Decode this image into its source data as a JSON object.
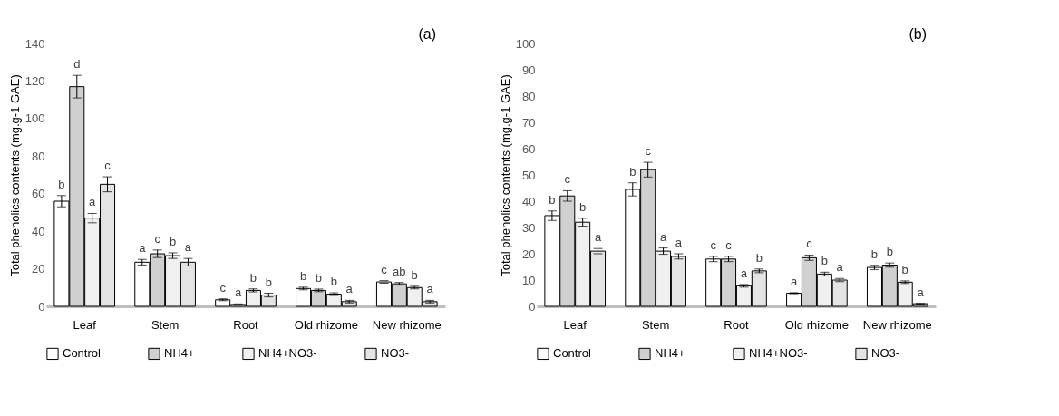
{
  "chart_data": [
    {
      "type": "bar",
      "ylabel": "Total phenolics contents (mg.g-1 GAE)",
      "annotations": [
        "(a)"
      ],
      "categories": [
        "Leaf",
        "Stem",
        "Root",
        "Old rhizome",
        "New rhizome"
      ],
      "ylim": [
        0,
        140
      ],
      "yticks": [
        0,
        20,
        40,
        60,
        80,
        100,
        120,
        140
      ],
      "grid": false,
      "legend": "bottom",
      "series": [
        {
          "name": "Control",
          "color": "#ffffff",
          "values": [
            56,
            23.5,
            3.5,
            9.5,
            13
          ],
          "errors": [
            3,
            1.5,
            0.5,
            0.7,
            0.7
          ],
          "value_labels": [
            "b",
            "a",
            "c",
            "b",
            "c"
          ]
        },
        {
          "name": "NH4+",
          "color": "#d0d0d0",
          "values": [
            117,
            28,
            1,
            8.5,
            12
          ],
          "errors": [
            6,
            2,
            0.3,
            0.7,
            0.7
          ],
          "value_labels": [
            "d",
            "c",
            "a",
            "b",
            "ab"
          ]
        },
        {
          "name": "NH4+NO3-",
          "color": "#f0f0f0",
          "values": [
            47,
            27,
            8.5,
            6.5,
            10
          ],
          "errors": [
            2.5,
            1.5,
            0.8,
            0.7,
            0.7
          ],
          "value_labels": [
            "a",
            "b",
            "b",
            "b",
            "b"
          ]
        },
        {
          "name": "NO3-",
          "color": "#e4e4e4",
          "values": [
            65,
            23.5,
            6,
            2.5,
            2.5
          ],
          "errors": [
            4,
            2,
            1,
            0.7,
            0.7
          ],
          "value_labels": [
            "c",
            "a",
            "b",
            "a",
            "a"
          ]
        }
      ]
    },
    {
      "type": "bar",
      "ylabel": "Total phenolics contents  (mg.g-1 GAE)",
      "annotations": [
        "(b)"
      ],
      "categories": [
        "Leaf",
        "Stem",
        "Root",
        "Old rhizome",
        "New rhizome"
      ],
      "ylim": [
        0,
        100
      ],
      "yticks": [
        0,
        10,
        20,
        30,
        40,
        50,
        60,
        70,
        80,
        90,
        100
      ],
      "grid": false,
      "legend": "bottom",
      "series": [
        {
          "name": "Control",
          "color": "#ffffff",
          "values": [
            34.5,
            44.5,
            18,
            5,
            14.8
          ],
          "errors": [
            1.8,
            2.5,
            1,
            0.2,
            0.8
          ],
          "value_labels": [
            "b",
            "b",
            "c",
            "a",
            "b"
          ]
        },
        {
          "name": "NH4+",
          "color": "#d0d0d0",
          "values": [
            42,
            52,
            18,
            18.5,
            15.7
          ],
          "errors": [
            2,
            2.8,
            1,
            1,
            0.8
          ],
          "value_labels": [
            "c",
            "c",
            "c",
            "c",
            "b"
          ]
        },
        {
          "name": "NH4+NO3-",
          "color": "#f0f0f0",
          "values": [
            32,
            21,
            7.8,
            12.3,
            9.2
          ],
          "errors": [
            1.5,
            1.2,
            0.5,
            0.7,
            0.5
          ],
          "value_labels": [
            "b",
            "a",
            "a",
            "b",
            "b"
          ]
        },
        {
          "name": "NO3-",
          "color": "#e4e4e4",
          "values": [
            21,
            19,
            13.5,
            10,
            1
          ],
          "errors": [
            1,
            1,
            0.7,
            0.6,
            0.1
          ],
          "value_labels": [
            "a",
            "a",
            "b",
            "a",
            "a"
          ]
        }
      ]
    }
  ]
}
